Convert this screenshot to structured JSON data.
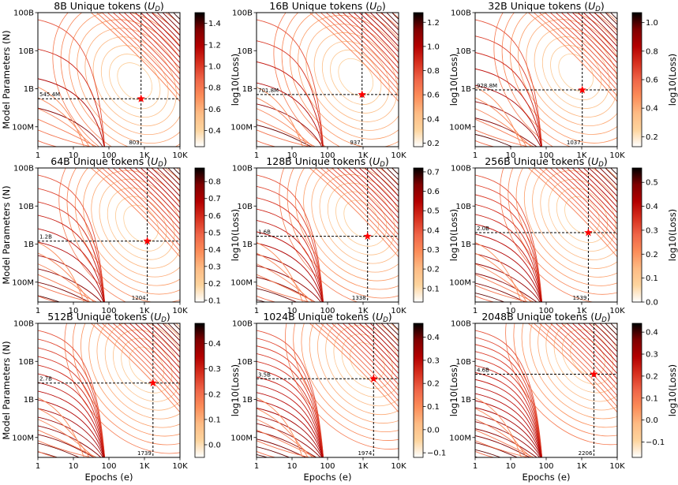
{
  "figure": {
    "xlabel": "Epochs (e)",
    "ylabel": "Model Parameters (N)",
    "colorbar_label": "log10(Loss)"
  },
  "chart_data": [
    {
      "type": "heatmap",
      "title": "8B Unique tokens",
      "title_sub": "D",
      "x": {
        "scale": "log",
        "range": [
          1,
          10000
        ],
        "ticks": [
          "1",
          "10",
          "100",
          "1K",
          "10K"
        ]
      },
      "y": {
        "scale": "log",
        "range": [
          30000000,
          100000000000
        ],
        "ticks": [
          "100M",
          "1B",
          "10B",
          "100B"
        ]
      },
      "optimum": {
        "epochs": 803,
        "params": 545400000,
        "epochs_label": "803",
        "params_label": "545.4M"
      },
      "colorbar": {
        "min": 0.25,
        "max": 1.5,
        "ticks": [
          0.4,
          0.6,
          0.8,
          1.0,
          1.2,
          1.4
        ],
        "tick_labels": [
          "0.4",
          "0.6",
          "0.8",
          "1.0",
          "1.2",
          "1.4"
        ]
      }
    },
    {
      "type": "heatmap",
      "title": "16B Unique tokens",
      "title_sub": "D",
      "x": {
        "scale": "log",
        "range": [
          1,
          10000
        ],
        "ticks": [
          "1",
          "10",
          "100",
          "1K",
          "10K"
        ]
      },
      "y": {
        "scale": "log",
        "range": [
          30000000,
          100000000000
        ],
        "ticks": [
          "100M",
          "1B",
          "10B",
          "100B"
        ]
      },
      "optimum": {
        "epochs": 937,
        "params": 701800000,
        "epochs_label": "937",
        "params_label": "701.8M"
      },
      "colorbar": {
        "min": 0.17,
        "max": 1.28,
        "ticks": [
          0.2,
          0.4,
          0.6,
          0.8,
          1.0,
          1.2
        ],
        "tick_labels": [
          "0.2",
          "0.4",
          "0.6",
          "0.8",
          "1.0",
          "1.2"
        ]
      }
    },
    {
      "type": "heatmap",
      "title": "32B Unique tokens",
      "title_sub": "D",
      "x": {
        "scale": "log",
        "range": [
          1,
          10000
        ],
        "ticks": [
          "1",
          "10",
          "100",
          "1K",
          "10K"
        ]
      },
      "y": {
        "scale": "log",
        "range": [
          30000000,
          100000000000
        ],
        "ticks": [
          "100M",
          "1B",
          "10B",
          "100B"
        ]
      },
      "optimum": {
        "epochs": 1037,
        "params": 928800000,
        "epochs_label": "1037",
        "params_label": "928.8M"
      },
      "colorbar": {
        "min": 0.13,
        "max": 1.07,
        "ticks": [
          0.2,
          0.4,
          0.6,
          0.8,
          1.0
        ],
        "tick_labels": [
          "0.2",
          "0.4",
          "0.6",
          "0.8",
          "1.0"
        ]
      }
    },
    {
      "type": "heatmap",
      "title": "64B Unique tokens",
      "title_sub": "D",
      "x": {
        "scale": "log",
        "range": [
          1,
          10000
        ],
        "ticks": [
          "1",
          "10",
          "100",
          "1K",
          "10K"
        ]
      },
      "y": {
        "scale": "log",
        "range": [
          30000000,
          100000000000
        ],
        "ticks": [
          "100M",
          "1B",
          "10B",
          "100B"
        ]
      },
      "optimum": {
        "epochs": 1204,
        "params": 1200000000,
        "epochs_label": "1204",
        "params_label": "1.2B"
      },
      "colorbar": {
        "min": 0.09,
        "max": 0.88,
        "ticks": [
          0.1,
          0.2,
          0.3,
          0.4,
          0.5,
          0.6,
          0.7,
          0.8
        ],
        "tick_labels": [
          "0.1",
          "0.2",
          "0.3",
          "0.4",
          "0.5",
          "0.6",
          "0.7",
          "0.8"
        ]
      }
    },
    {
      "type": "heatmap",
      "title": "128B Unique tokens",
      "title_sub": "D",
      "x": {
        "scale": "log",
        "range": [
          1,
          10000
        ],
        "ticks": [
          "1",
          "10",
          "100",
          "1K",
          "10K"
        ]
      },
      "y": {
        "scale": "log",
        "range": [
          30000000,
          100000000000
        ],
        "ticks": [
          "100M",
          "1B",
          "10B",
          "100B"
        ]
      },
      "optimum": {
        "epochs": 1338,
        "params": 1600000000,
        "epochs_label": "1338",
        "params_label": "1.6B"
      },
      "colorbar": {
        "min": 0.03,
        "max": 0.72,
        "ticks": [
          0.1,
          0.2,
          0.3,
          0.4,
          0.5,
          0.6,
          0.7
        ],
        "tick_labels": [
          "0.1",
          "0.2",
          "0.3",
          "0.4",
          "0.5",
          "0.6",
          "0.7"
        ]
      }
    },
    {
      "type": "heatmap",
      "title": "256B Unique tokens",
      "title_sub": "D",
      "x": {
        "scale": "log",
        "range": [
          1,
          10000
        ],
        "ticks": [
          "1",
          "10",
          "100",
          "1K",
          "10K"
        ]
      },
      "y": {
        "scale": "log",
        "range": [
          30000000,
          100000000000
        ],
        "ticks": [
          "100M",
          "1B",
          "10B",
          "100B"
        ]
      },
      "optimum": {
        "epochs": 1539,
        "params": 2000000000,
        "epochs_label": "1539",
        "params_label": "2.0B"
      },
      "colorbar": {
        "min": 0.0,
        "max": 0.56,
        "ticks": [
          0.0,
          0.1,
          0.2,
          0.3,
          0.4,
          0.5
        ],
        "tick_labels": [
          "0.0",
          "0.1",
          "0.2",
          "0.3",
          "0.4",
          "0.5"
        ]
      }
    },
    {
      "type": "heatmap",
      "title": "512B Unique tokens",
      "title_sub": "D",
      "x": {
        "scale": "log",
        "range": [
          1,
          10000
        ],
        "ticks": [
          "1",
          "10",
          "100",
          "1K",
          "10K"
        ]
      },
      "y": {
        "scale": "log",
        "range": [
          30000000,
          100000000000
        ],
        "ticks": [
          "100M",
          "1B",
          "10B",
          "100B"
        ]
      },
      "optimum": {
        "epochs": 1739,
        "params": 2700000000,
        "epochs_label": "1739",
        "params_label": "2.7B"
      },
      "colorbar": {
        "min": -0.05,
        "max": 0.48,
        "ticks": [
          0.0,
          0.1,
          0.2,
          0.3,
          0.4
        ],
        "tick_labels": [
          "0.0",
          "0.1",
          "0.2",
          "0.3",
          "0.4"
        ]
      }
    },
    {
      "type": "heatmap",
      "title": "1024B Unique tokens",
      "title_sub": "D",
      "x": {
        "scale": "log",
        "range": [
          1,
          10000
        ],
        "ticks": [
          "1",
          "10",
          "100",
          "1K",
          "10K"
        ]
      },
      "y": {
        "scale": "log",
        "range": [
          30000000,
          100000000000
        ],
        "ticks": [
          "100M",
          "1B",
          "10B",
          "100B"
        ]
      },
      "optimum": {
        "epochs": 1974,
        "params": 3500000000,
        "epochs_label": "1974",
        "params_label": "3.5B"
      },
      "colorbar": {
        "min": -0.12,
        "max": 0.46,
        "ticks": [
          -0.1,
          0.0,
          0.1,
          0.2,
          0.3,
          0.4
        ],
        "tick_labels": [
          "−0.1",
          "0.0",
          "0.1",
          "0.2",
          "0.3",
          "0.4"
        ]
      }
    },
    {
      "type": "heatmap",
      "title": "2048B Unique tokens",
      "title_sub": "D",
      "x": {
        "scale": "log",
        "range": [
          1,
          10000
        ],
        "ticks": [
          "1",
          "10",
          "100",
          "1K",
          "10K"
        ]
      },
      "y": {
        "scale": "log",
        "range": [
          30000000,
          100000000000
        ],
        "ticks": [
          "100M",
          "1B",
          "10B",
          "100B"
        ]
      },
      "optimum": {
        "epochs": 2206,
        "params": 4600000000,
        "epochs_label": "2206",
        "params_label": "4.6B"
      },
      "colorbar": {
        "min": -0.17,
        "max": 0.44,
        "ticks": [
          -0.1,
          0.0,
          0.1,
          0.2,
          0.3,
          0.4
        ],
        "tick_labels": [
          "−0.1",
          "0.0",
          "0.1",
          "0.2",
          "0.3",
          "0.4"
        ]
      }
    }
  ],
  "colors": {
    "cmap": [
      "#ffffff",
      "#fdd49e",
      "#fdbb84",
      "#fc8d59",
      "#ef6548",
      "#d7301f",
      "#b30000",
      "#7f0000",
      "#000000"
    ],
    "optimum_marker": "#ff0000",
    "guide_line": "#000000"
  }
}
